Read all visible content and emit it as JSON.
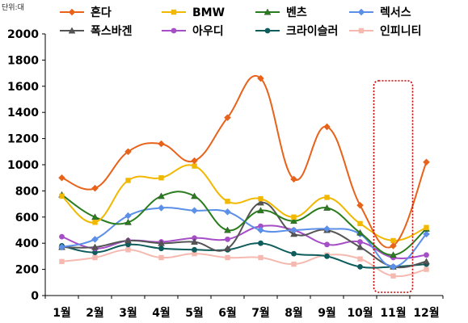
{
  "unit_label": "단위:대",
  "chart_data": {
    "type": "line",
    "categories": [
      "1월",
      "2월",
      "3월",
      "4월",
      "5월",
      "6월",
      "7월",
      "8월",
      "9월",
      "10월",
      "11월",
      "12월"
    ],
    "ylim": [
      0,
      2000
    ],
    "yticks": [
      0,
      200,
      400,
      600,
      800,
      1000,
      1200,
      1400,
      1600,
      1800,
      2000
    ],
    "grid": false,
    "legend_position": "top",
    "smooth": true,
    "highlight": {
      "category": "11월",
      "style": "dotted-box",
      "color": "#C00000"
    },
    "series": [
      {
        "name": "혼다",
        "color": "#E8621A",
        "marker": "diamond",
        "values": [
          900,
          820,
          1100,
          1160,
          1030,
          1360,
          1660,
          890,
          1290,
          690,
          380,
          1020
        ]
      },
      {
        "name": "BMW",
        "color": "#F2B800",
        "marker": "square",
        "values": [
          760,
          560,
          880,
          900,
          990,
          720,
          740,
          600,
          750,
          550,
          420,
          520
        ]
      },
      {
        "name": "벤츠",
        "color": "#2A7D1E",
        "marker": "triangle",
        "values": [
          770,
          600,
          560,
          760,
          760,
          500,
          650,
          570,
          670,
          480,
          310,
          510
        ]
      },
      {
        "name": "렉서스",
        "color": "#5B8FE8",
        "marker": "diamond",
        "values": [
          370,
          430,
          610,
          670,
          650,
          640,
          500,
          500,
          510,
          470,
          220,
          470
        ]
      },
      {
        "name": "폭스바겐",
        "color": "#555555",
        "marker": "triangle",
        "values": [
          370,
          370,
          420,
          400,
          410,
          360,
          710,
          470,
          500,
          370,
          220,
          260
        ]
      },
      {
        "name": "아우디",
        "color": "#A64DC8",
        "marker": "circle",
        "values": [
          450,
          360,
          420,
          410,
          440,
          430,
          530,
          500,
          390,
          410,
          290,
          310
        ]
      },
      {
        "name": "크라이슬러",
        "color": "#0E5C5C",
        "marker": "circle",
        "values": [
          380,
          330,
          390,
          360,
          350,
          350,
          400,
          320,
          300,
          220,
          220,
          240
        ]
      },
      {
        "name": "인피니티",
        "color": "#F5B9B0",
        "marker": "square",
        "values": [
          260,
          290,
          350,
          290,
          320,
          290,
          290,
          240,
          310,
          280,
          150,
          200
        ]
      }
    ]
  }
}
